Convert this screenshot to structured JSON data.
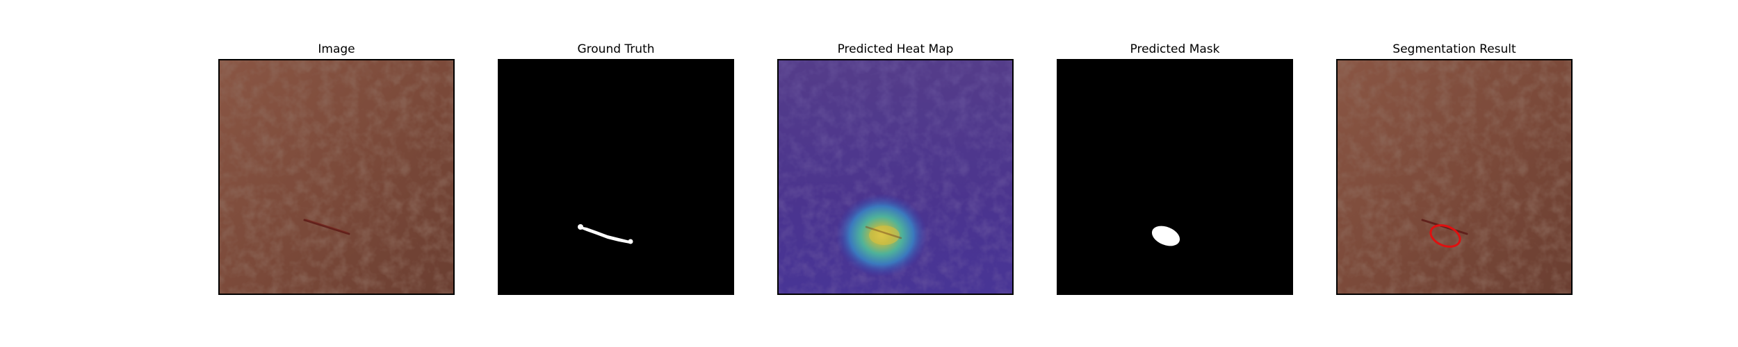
{
  "figure": {
    "panels": [
      {
        "title": "Image",
        "type": "leather-photo",
        "icon": "leather-texture-image"
      },
      {
        "title": "Ground Truth",
        "type": "ground-truth-mask",
        "icon": "binary-mask-image"
      },
      {
        "title": "Predicted Heat Map",
        "type": "heatmap-overlay",
        "icon": "heatmap-image"
      },
      {
        "title": "Predicted Mask",
        "type": "predicted-mask",
        "icon": "binary-mask-image"
      },
      {
        "title": "Segmentation Result",
        "type": "segmentation-overlay",
        "icon": "segmentation-overlay-image"
      }
    ],
    "colors": {
      "leather": "#7b4a3a",
      "leather_dark": "#4e2c22",
      "defect": "#6a1f1a",
      "mask_background": "#000000",
      "mask_foreground": "#ffffff",
      "heatmap_base": "#3f2fa8",
      "heatmap_hot": "#f2e85a",
      "contour": "#e01010"
    }
  }
}
